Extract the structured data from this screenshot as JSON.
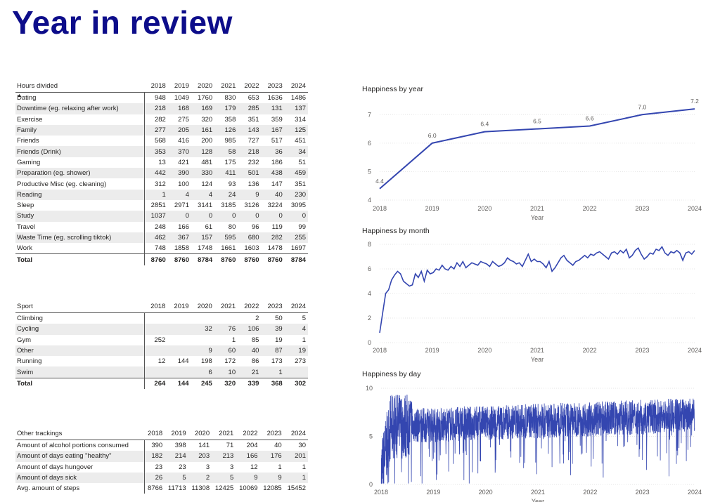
{
  "page_title": "Year in review",
  "years": [
    "2018",
    "2019",
    "2020",
    "2021",
    "2022",
    "2023",
    "2024"
  ],
  "hours_table": {
    "label": "Hours divided",
    "rows": [
      {
        "label": "Dating",
        "values": [
          "948",
          "1049",
          "1760",
          "830",
          "653",
          "1636",
          "1486"
        ]
      },
      {
        "label": "Downtime (eg. relaxing after work)",
        "values": [
          "218",
          "168",
          "169",
          "179",
          "285",
          "131",
          "137"
        ]
      },
      {
        "label": "Exercise",
        "values": [
          "282",
          "275",
          "320",
          "358",
          "351",
          "359",
          "314"
        ]
      },
      {
        "label": "Family",
        "values": [
          "277",
          "205",
          "161",
          "126",
          "143",
          "167",
          "125"
        ]
      },
      {
        "label": "Friends",
        "values": [
          "568",
          "416",
          "200",
          "985",
          "727",
          "517",
          "451"
        ]
      },
      {
        "label": "Friends (Drink)",
        "values": [
          "353",
          "370",
          "128",
          "58",
          "218",
          "36",
          "34"
        ]
      },
      {
        "label": "Gaming",
        "values": [
          "13",
          "421",
          "481",
          "175",
          "232",
          "186",
          "51"
        ]
      },
      {
        "label": "Preparation (eg. shower)",
        "values": [
          "442",
          "390",
          "330",
          "411",
          "501",
          "438",
          "459"
        ]
      },
      {
        "label": "Productive Misc (eg. cleaning)",
        "values": [
          "312",
          "100",
          "124",
          "93",
          "136",
          "147",
          "351"
        ]
      },
      {
        "label": "Reading",
        "values": [
          "1",
          "4",
          "4",
          "24",
          "9",
          "40",
          "230"
        ]
      },
      {
        "label": "Sleep",
        "values": [
          "2851",
          "2971",
          "3141",
          "3185",
          "3126",
          "3224",
          "3095"
        ]
      },
      {
        "label": "Study",
        "values": [
          "1037",
          "0",
          "0",
          "0",
          "0",
          "0",
          "0"
        ]
      },
      {
        "label": "Travel",
        "values": [
          "248",
          "166",
          "61",
          "80",
          "96",
          "119",
          "99"
        ]
      },
      {
        "label": "Waste Time (eg. scrolling tiktok)",
        "values": [
          "462",
          "367",
          "157",
          "595",
          "680",
          "282",
          "255"
        ]
      },
      {
        "label": "Work",
        "values": [
          "748",
          "1858",
          "1748",
          "1661",
          "1603",
          "1478",
          "1697"
        ]
      }
    ],
    "total": {
      "label": "Total",
      "values": [
        "8760",
        "8760",
        "8784",
        "8760",
        "8760",
        "8760",
        "8784"
      ]
    }
  },
  "sport_table": {
    "label": "Sport",
    "rows": [
      {
        "label": "Climbing",
        "values": [
          "",
          "",
          "",
          "",
          "2",
          "50",
          "5"
        ]
      },
      {
        "label": "Cycling",
        "values": [
          "",
          "",
          "32",
          "76",
          "106",
          "39",
          "4"
        ]
      },
      {
        "label": "Gym",
        "values": [
          "252",
          "",
          "",
          "1",
          "85",
          "19",
          "1"
        ]
      },
      {
        "label": "Other",
        "values": [
          "",
          "",
          "9",
          "60",
          "40",
          "87",
          "19"
        ]
      },
      {
        "label": "Running",
        "values": [
          "12",
          "144",
          "198",
          "172",
          "86",
          "173",
          "273"
        ]
      },
      {
        "label": "Swim",
        "values": [
          "",
          "",
          "6",
          "10",
          "21",
          "1",
          ""
        ]
      }
    ],
    "total": {
      "label": "Total",
      "values": [
        "264",
        "144",
        "245",
        "320",
        "339",
        "368",
        "302"
      ]
    }
  },
  "other_table": {
    "label": "Other trackings",
    "rows": [
      {
        "label": "Amount of alcohol portions consumed",
        "values": [
          "390",
          "398",
          "141",
          "71",
          "204",
          "40",
          "30"
        ]
      },
      {
        "label": "Amount of days eating \"healthy\"",
        "values": [
          "182",
          "214",
          "203",
          "213",
          "166",
          "176",
          "201"
        ]
      },
      {
        "label": "Amount of days hungover",
        "values": [
          "23",
          "23",
          "3",
          "3",
          "12",
          "1",
          "1"
        ]
      },
      {
        "label": "Amount of days sick",
        "values": [
          "26",
          "5",
          "2",
          "5",
          "9",
          "9",
          "1"
        ]
      },
      {
        "label": "Avg. amount of steps",
        "values": [
          "8766",
          "11713",
          "11308",
          "12425",
          "10069",
          "12085",
          "15452"
        ]
      }
    ]
  },
  "chart_data": [
    {
      "type": "line",
      "title": "Happiness by year",
      "xlabel": "Year",
      "ylabel": "",
      "x": [
        2018,
        2019,
        2020,
        2021,
        2022,
        2023,
        2024
      ],
      "series": [
        {
          "values": [
            4.4,
            6.0,
            6.4,
            6.5,
            6.6,
            7.0,
            7.2
          ]
        }
      ],
      "ylim": [
        4,
        7.5
      ],
      "yticks": [
        4,
        5,
        6,
        7
      ],
      "data_labels": [
        "4.4",
        "6.0",
        "6.4",
        "6.5",
        "6.6",
        "7.0",
        "7.2"
      ],
      "color": "#3446b0",
      "grid": true
    },
    {
      "type": "line",
      "title": "Happiness by month",
      "xlabel": "Year",
      "ylabel": "",
      "x_start": "2018-01",
      "x_step": "month",
      "xticks": [
        "2018",
        "2019",
        "2020",
        "2021",
        "2022",
        "2023",
        "2024"
      ],
      "series": [
        {
          "values": [
            0.8,
            2.4,
            4.0,
            4.3,
            5.1,
            5.5,
            5.8,
            5.6,
            5.0,
            4.8,
            4.6,
            4.7,
            5.6,
            5.3,
            5.8,
            5.0,
            5.9,
            5.6,
            5.7,
            6.0,
            5.9,
            6.3,
            6.0,
            5.9,
            6.2,
            6.0,
            6.5,
            6.2,
            6.6,
            6.1,
            6.3,
            6.5,
            6.4,
            6.3,
            6.6,
            6.5,
            6.4,
            6.2,
            6.6,
            6.4,
            6.2,
            6.3,
            6.5,
            6.9,
            6.7,
            6.6,
            6.4,
            6.5,
            6.2,
            6.7,
            7.2,
            6.6,
            6.8,
            6.6,
            6.6,
            6.4,
            6.1,
            6.6,
            5.8,
            6.1,
            6.5,
            6.9,
            7.1,
            6.7,
            6.5,
            6.3,
            6.6,
            6.7,
            6.9,
            7.1,
            6.9,
            7.2,
            7.1,
            7.3,
            7.4,
            7.2,
            7.0,
            6.8,
            7.3,
            7.4,
            7.2,
            7.5,
            7.3,
            7.6,
            6.9,
            7.1,
            7.5,
            7.7,
            7.2,
            6.8,
            7.0,
            7.3,
            7.2,
            7.6,
            7.5,
            7.8,
            7.3,
            7.1,
            7.4,
            7.3,
            7.5,
            7.3,
            6.7,
            7.3,
            7.4,
            7.2,
            7.5
          ]
        }
      ],
      "ylim": [
        0,
        8
      ],
      "yticks": [
        0,
        2,
        4,
        6,
        8
      ],
      "color": "#3446b0",
      "grid": true
    },
    {
      "type": "line",
      "title": "Happiness by day",
      "xlabel": "Year",
      "ylabel": "",
      "x_start": "2018-01-01",
      "x_step": "day",
      "xticks": [
        "2018",
        "2019",
        "2020",
        "2021",
        "2022",
        "2023",
        "2024"
      ],
      "series": [
        {
          "name": "",
          "values": "daily values (approx. 0–9, mean ≈ 6.5, high variance)"
        }
      ],
      "ylim": [
        0,
        10
      ],
      "yticks": [
        0,
        5,
        10
      ],
      "color": "#3446b0",
      "grid": true
    }
  ]
}
